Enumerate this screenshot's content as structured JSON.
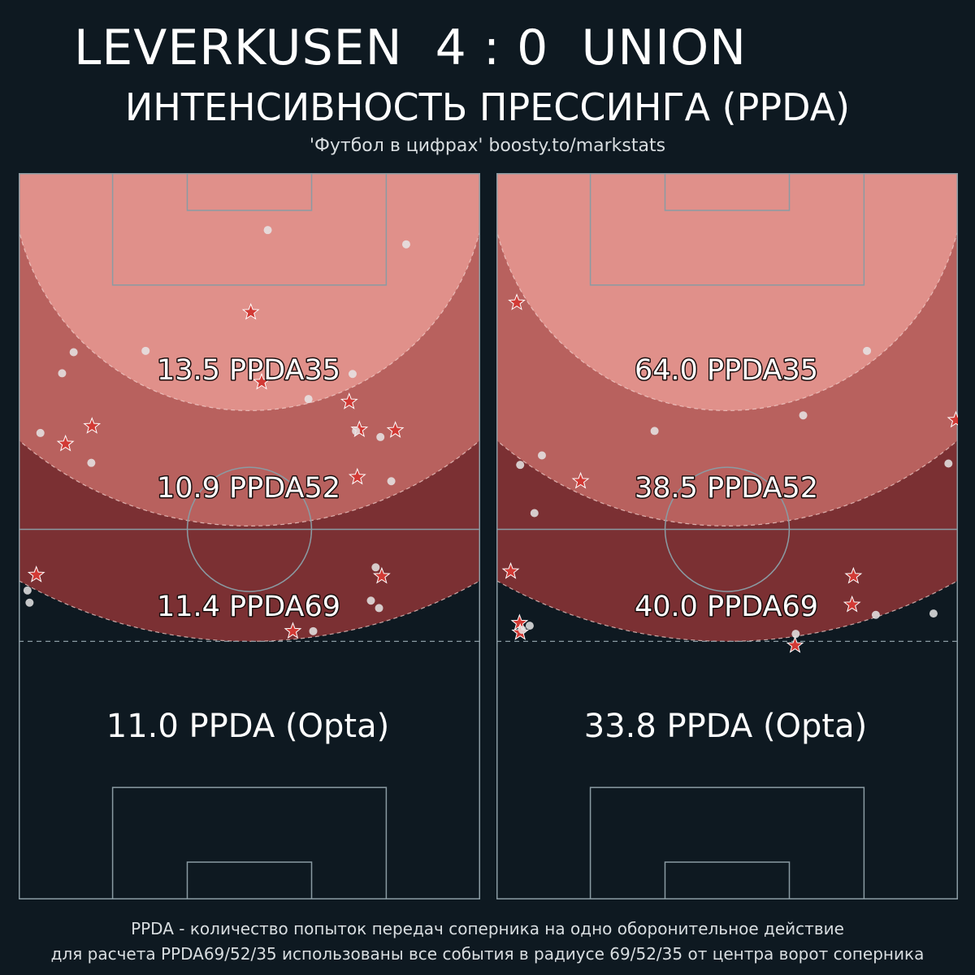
{
  "header": {
    "title": "LEVERKUSEN  4 : 0  UNION",
    "subtitle": "ИНТЕНСИВНОСТЬ ПРЕССИНГА (PPDA)",
    "source": "'Футбол в цифрах' boosty.to/markstats"
  },
  "footer": {
    "line1": "PPDA - количество попыток передач соперника на одно оборонительное действие",
    "line2": "для расчета PPDA69/52/35 использованы все события в радиусе 69/52/35 от центра ворот соперника"
  },
  "colors": {
    "background": "#0e1921",
    "zone35": "#e0908a",
    "zone52": "#b8615e",
    "zone69": "#7b3033",
    "star": "#d23a35",
    "dot": "#e6e6e6",
    "lines": "#8a9ba3"
  },
  "chart_data": [
    {
      "type": "scatter",
      "team": "LEVERKUSEN",
      "zone_labels": [
        {
          "radius": 35,
          "text": "13.5 PPDA35"
        },
        {
          "radius": 52,
          "text": "10.9 PPDA52"
        },
        {
          "radius": 69,
          "text": "11.4 PPDA69"
        }
      ],
      "opta_label": "11.0 PPDA (Opta)",
      "pitch": {
        "length": 105,
        "width": 68,
        "halfway_line": true
      },
      "series": [
        {
          "marker": "star",
          "points": [
            [
              34.2,
              84.5
            ],
            [
              35.8,
              74.2
            ],
            [
              10.8,
              67.7
            ],
            [
              48.7,
              71.3
            ],
            [
              55.5,
              67.1
            ],
            [
              50.2,
              67.2
            ],
            [
              6.9,
              65.1
            ],
            [
              49.9,
              60.2
            ],
            [
              2.6,
              45.8
            ],
            [
              53.5,
              45.6
            ],
            [
              40.4,
              37.5
            ]
          ]
        },
        {
          "marker": "circle",
          "points": [
            [
              36.7,
              96.6
            ],
            [
              57.1,
              94.5
            ],
            [
              8.1,
              78.6
            ],
            [
              18.7,
              78.8
            ],
            [
              6.4,
              75.5
            ],
            [
              49.2,
              75.4
            ],
            [
              42.7,
              71.7
            ],
            [
              3.2,
              66.7
            ],
            [
              49.7,
              67.0
            ],
            [
              53.3,
              66.1
            ],
            [
              10.7,
              62.3
            ],
            [
              54.9,
              59.6
            ],
            [
              52.6,
              46.9
            ],
            [
              1.6,
              41.7
            ],
            [
              51.9,
              42.0
            ],
            [
              53.1,
              40.9
            ],
            [
              43.4,
              37.5
            ],
            [
              1.3,
              43.5
            ]
          ]
        }
      ]
    },
    {
      "type": "scatter",
      "team": "UNION",
      "zone_labels": [
        {
          "radius": 35,
          "text": "64.0 PPDA35"
        },
        {
          "radius": 52,
          "text": "38.5 PPDA52"
        },
        {
          "radius": 69,
          "text": "40.0 PPDA69"
        }
      ],
      "opta_label": "33.8 PPDA (Opta)",
      "pitch": {
        "length": 105,
        "width": 68,
        "halfway_line": true
      },
      "series": [
        {
          "marker": "star",
          "points": [
            [
              3.0,
              85.9
            ],
            [
              67.7,
              68.6
            ],
            [
              12.4,
              59.6
            ],
            [
              2.1,
              46.3
            ],
            [
              52.6,
              45.6
            ],
            [
              52.4,
              41.4
            ],
            [
              3.4,
              38.7
            ],
            [
              3.5,
              37.3
            ],
            [
              44.0,
              35.4
            ]
          ]
        },
        {
          "marker": "circle",
          "points": [
            [
              54.6,
              78.8
            ],
            [
              45.2,
              69.3
            ],
            [
              23.3,
              67.0
            ],
            [
              6.7,
              63.4
            ],
            [
              3.5,
              62.0
            ],
            [
              66.6,
              62.2
            ],
            [
              5.6,
              54.9
            ],
            [
              55.9,
              39.9
            ],
            [
              64.4,
              40.1
            ],
            [
              4.9,
              38.3
            ],
            [
              3.8,
              37.7
            ],
            [
              44.1,
              37.1
            ]
          ]
        }
      ]
    }
  ]
}
